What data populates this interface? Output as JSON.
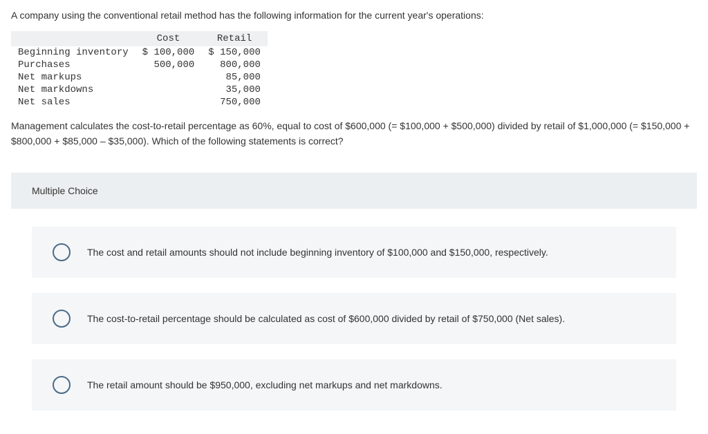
{
  "intro": "A company using the conventional retail method has the following information for the current year's operations:",
  "table": {
    "headers": {
      "cost": "Cost",
      "retail": "Retail"
    },
    "rows": [
      {
        "label": "Beginning inventory",
        "cost": "$ 100,000",
        "retail": "$ 150,000"
      },
      {
        "label": "Purchases",
        "cost": "500,000",
        "retail": "800,000"
      },
      {
        "label": "Net markups",
        "cost": "",
        "retail": "85,000"
      },
      {
        "label": "Net markdowns",
        "cost": "",
        "retail": "35,000"
      },
      {
        "label": "Net sales",
        "cost": "",
        "retail": "750,000"
      }
    ]
  },
  "followup": "Management calculates the cost-to-retail percentage as 60%, equal to cost of $600,000 (= $100,000 + $500,000) divided by retail of $1,000,000 (= $150,000 + $800,000 + $85,000 – $35,000). Which of the following statements is correct?",
  "mc_label": "Multiple Choice",
  "choices": [
    "The cost and retail amounts should not include beginning inventory of $100,000 and $150,000, respectively.",
    "The cost-to-retail percentage should be calculated as cost of $600,000 divided by retail of $750,000 (Net sales).",
    "The retail amount should be $950,000, excluding net markups and net markdowns."
  ]
}
